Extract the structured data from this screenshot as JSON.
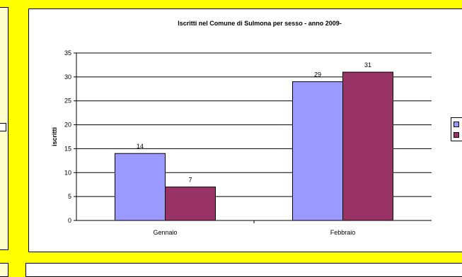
{
  "chart_data": {
    "type": "bar",
    "title": "Iscritti nel Comune di Sulmona per sesso - anno 2009-",
    "xlabel": "",
    "ylabel": "iscritti",
    "categories": [
      "Gennaio",
      "Febbraio"
    ],
    "series": [
      {
        "values": [
          14,
          29
        ],
        "color": "#9999ff"
      },
      {
        "values": [
          7,
          31
        ],
        "color": "#993366"
      }
    ],
    "ylim": [
      0,
      35
    ],
    "yticks": [
      0,
      5,
      10,
      15,
      20,
      25,
      30,
      35
    ],
    "grid": true,
    "legend_position": "right"
  },
  "colors": {
    "background": "#ffff00",
    "panel": "#ffffff",
    "left_panel": "#ffffcc"
  }
}
